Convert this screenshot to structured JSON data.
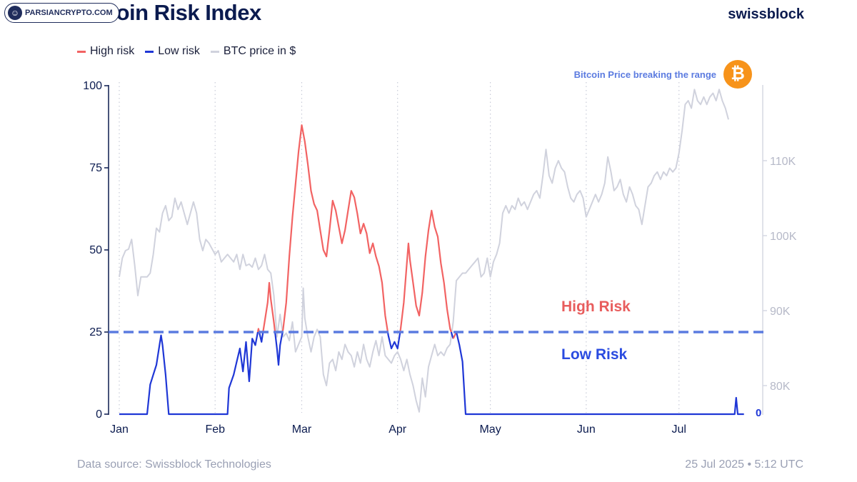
{
  "header": {
    "title": "Bitcoin Risk Index",
    "brand": "swissblock",
    "watermark": "PARSIANCRYPTO.COM"
  },
  "legend": [
    {
      "label": "High risk",
      "color": "#f26363"
    },
    {
      "label": "Low risk",
      "color": "#1f37d6"
    },
    {
      "label": "BTC price in $",
      "color": "#d0d2dd"
    }
  ],
  "annotations": {
    "range_note": "Bitcoin Price breaking the range",
    "btc_symbol": "₿",
    "high_zone": "High Risk",
    "low_zone": "Low Risk",
    "zero_right": "0"
  },
  "footer": {
    "source": "Data source: Swissblock Technologies",
    "timestamp": "25 Jul 2025 • 5:12 UTC"
  },
  "chart_data": {
    "type": "line",
    "threshold": 25,
    "left_axis": {
      "min": 0,
      "max": 100,
      "ticks": [
        0,
        25,
        50,
        75,
        100
      ]
    },
    "right_axis": {
      "ticks": [
        80000,
        90000,
        100000,
        110000
      ],
      "tick_labels": [
        "80K",
        "90K",
        "100K",
        "110K"
      ]
    },
    "x_ticks": [
      {
        "label": "Jan",
        "day": 0
      },
      {
        "label": "Feb",
        "day": 31
      },
      {
        "label": "Mar",
        "day": 59
      },
      {
        "label": "Apr",
        "day": 90
      },
      {
        "label": "May",
        "day": 120
      },
      {
        "label": "Jun",
        "day": 151
      },
      {
        "label": "Jul",
        "day": 181
      }
    ],
    "series": [
      {
        "name": "High risk / Low risk",
        "color_high": "#f26363",
        "color_low": "#1f37d6",
        "points": [
          [
            0,
            0
          ],
          [
            9,
            0
          ],
          [
            10,
            9
          ],
          [
            11,
            12
          ],
          [
            12,
            15
          ],
          [
            13,
            21
          ],
          [
            13.5,
            24
          ],
          [
            14,
            21
          ],
          [
            15,
            12
          ],
          [
            15.5,
            6
          ],
          [
            16,
            0
          ],
          [
            34,
            0
          ],
          [
            35,
            0
          ],
          [
            35.5,
            8
          ],
          [
            37,
            12
          ],
          [
            38,
            16
          ],
          [
            39,
            20
          ],
          [
            40,
            13
          ],
          [
            41,
            22
          ],
          [
            42,
            10
          ],
          [
            43,
            23
          ],
          [
            44,
            21
          ],
          [
            45,
            26
          ],
          [
            46,
            22
          ],
          [
            47,
            28
          ],
          [
            48,
            34
          ],
          [
            48.5,
            40
          ],
          [
            49,
            35
          ],
          [
            50,
            28
          ],
          [
            51,
            20
          ],
          [
            51.5,
            15
          ],
          [
            52,
            21
          ],
          [
            53,
            26
          ],
          [
            54,
            34
          ],
          [
            55,
            48
          ],
          [
            56,
            60
          ],
          [
            57,
            70
          ],
          [
            58,
            80
          ],
          [
            59,
            88
          ],
          [
            60,
            83
          ],
          [
            61,
            76
          ],
          [
            62,
            68
          ],
          [
            63,
            64
          ],
          [
            64,
            62
          ],
          [
            65,
            56
          ],
          [
            66,
            50
          ],
          [
            67,
            48
          ],
          [
            68,
            56
          ],
          [
            69,
            65
          ],
          [
            70,
            62
          ],
          [
            71,
            57
          ],
          [
            72,
            52
          ],
          [
            73,
            56
          ],
          [
            74,
            62
          ],
          [
            75,
            68
          ],
          [
            76,
            66
          ],
          [
            77,
            61
          ],
          [
            78,
            55
          ],
          [
            79,
            58
          ],
          [
            80,
            55
          ],
          [
            81,
            49
          ],
          [
            82,
            52
          ],
          [
            83,
            48
          ],
          [
            84,
            45
          ],
          [
            85,
            40
          ],
          [
            86,
            30
          ],
          [
            87,
            24
          ],
          [
            88,
            20
          ],
          [
            89,
            22
          ],
          [
            90,
            20
          ],
          [
            91,
            26
          ],
          [
            92,
            34
          ],
          [
            93,
            46
          ],
          [
            93.5,
            52
          ],
          [
            94,
            47
          ],
          [
            95,
            40
          ],
          [
            96,
            33
          ],
          [
            97,
            30
          ],
          [
            98,
            37
          ],
          [
            99,
            48
          ],
          [
            100,
            56
          ],
          [
            101,
            62
          ],
          [
            102,
            57
          ],
          [
            103,
            54
          ],
          [
            104,
            46
          ],
          [
            105,
            40
          ],
          [
            106,
            32
          ],
          [
            107,
            26
          ],
          [
            108,
            23
          ],
          [
            109,
            25
          ],
          [
            110,
            21
          ],
          [
            111,
            16
          ],
          [
            112,
            0
          ],
          [
            198,
            0
          ],
          [
            199,
            0
          ],
          [
            199.5,
            5
          ],
          [
            200,
            0
          ],
          [
            202,
            0
          ]
        ]
      },
      {
        "name": "BTC price in $",
        "color": "#d0d2dd",
        "points": [
          [
            0,
            94500
          ],
          [
            1,
            97000
          ],
          [
            2,
            98000
          ],
          [
            3,
            98200
          ],
          [
            4,
            99500
          ],
          [
            5,
            96000
          ],
          [
            6,
            92000
          ],
          [
            7,
            94500
          ],
          [
            9,
            94500
          ],
          [
            10,
            95000
          ],
          [
            11,
            97500
          ],
          [
            12,
            101000
          ],
          [
            13,
            100500
          ],
          [
            14,
            103000
          ],
          [
            15,
            104000
          ],
          [
            16,
            102000
          ],
          [
            17,
            102500
          ],
          [
            18,
            105000
          ],
          [
            19,
            103500
          ],
          [
            20,
            104500
          ],
          [
            21,
            103000
          ],
          [
            22,
            101500
          ],
          [
            24,
            104500
          ],
          [
            25,
            103000
          ],
          [
            26,
            99500
          ],
          [
            27,
            98000
          ],
          [
            28,
            99500
          ],
          [
            29,
            99000
          ],
          [
            31,
            97500
          ],
          [
            32,
            98000
          ],
          [
            33,
            96500
          ],
          [
            34,
            97000
          ],
          [
            35,
            97500
          ],
          [
            36,
            97000
          ],
          [
            37,
            96500
          ],
          [
            38,
            97500
          ],
          [
            39,
            95500
          ],
          [
            40,
            97500
          ],
          [
            41,
            96000
          ],
          [
            42,
            96200
          ],
          [
            43,
            95800
          ],
          [
            44,
            97000
          ],
          [
            45,
            95500
          ],
          [
            46,
            96000
          ],
          [
            47,
            97500
          ],
          [
            48,
            95500
          ],
          [
            49,
            95000
          ],
          [
            50,
            92000
          ],
          [
            51,
            86500
          ],
          [
            52,
            89500
          ],
          [
            53,
            86500
          ],
          [
            54,
            87000
          ],
          [
            55,
            86000
          ],
          [
            56,
            88500
          ],
          [
            57,
            84500
          ],
          [
            58,
            85500
          ],
          [
            59,
            86500
          ],
          [
            59.5,
            93000
          ],
          [
            60,
            89000
          ],
          [
            61,
            86500
          ],
          [
            62,
            84500
          ],
          [
            63,
            86500
          ],
          [
            64,
            87500
          ],
          [
            65,
            86500
          ],
          [
            66,
            81500
          ],
          [
            67,
            80000
          ],
          [
            68,
            83000
          ],
          [
            69,
            83500
          ],
          [
            70,
            82000
          ],
          [
            71,
            84500
          ],
          [
            72,
            83500
          ],
          [
            73,
            85500
          ],
          [
            74,
            84500
          ],
          [
            75,
            84000
          ],
          [
            76,
            82500
          ],
          [
            77,
            84500
          ],
          [
            78,
            83000
          ],
          [
            79,
            85500
          ],
          [
            80,
            83500
          ],
          [
            81,
            82500
          ],
          [
            82,
            84500
          ],
          [
            83,
            86000
          ],
          [
            84,
            84000
          ],
          [
            85,
            86500
          ],
          [
            86,
            84000
          ],
          [
            87,
            83500
          ],
          [
            88,
            83000
          ],
          [
            89,
            84000
          ],
          [
            90,
            84500
          ],
          [
            91,
            83500
          ],
          [
            92,
            82000
          ],
          [
            93,
            83500
          ],
          [
            94,
            81500
          ],
          [
            95,
            80000
          ],
          [
            96,
            78000
          ],
          [
            97,
            76500
          ],
          [
            98,
            81000
          ],
          [
            99,
            78500
          ],
          [
            100,
            82500
          ],
          [
            101,
            84000
          ],
          [
            102,
            85500
          ],
          [
            103,
            84000
          ],
          [
            104,
            84500
          ],
          [
            105,
            84000
          ],
          [
            106,
            85000
          ],
          [
            107,
            85500
          ],
          [
            108,
            88500
          ],
          [
            109,
            94000
          ],
          [
            110,
            94500
          ],
          [
            111,
            95000
          ],
          [
            112,
            95000
          ],
          [
            113,
            95500
          ],
          [
            114,
            96000
          ],
          [
            115,
            96500
          ],
          [
            116,
            97000
          ],
          [
            117,
            94500
          ],
          [
            118,
            95000
          ],
          [
            119,
            97000
          ],
          [
            120,
            94500
          ],
          [
            121,
            96500
          ],
          [
            122,
            97500
          ],
          [
            123,
            99000
          ],
          [
            124,
            103000
          ],
          [
            125,
            104000
          ],
          [
            126,
            103000
          ],
          [
            127,
            104000
          ],
          [
            128,
            103500
          ],
          [
            129,
            105000
          ],
          [
            130,
            104000
          ],
          [
            131,
            104500
          ],
          [
            132,
            103500
          ],
          [
            133,
            104500
          ],
          [
            134,
            105500
          ],
          [
            135,
            106000
          ],
          [
            136,
            105000
          ],
          [
            137,
            108000
          ],
          [
            138,
            111500
          ],
          [
            139,
            108000
          ],
          [
            140,
            107000
          ],
          [
            141,
            109000
          ],
          [
            142,
            110000
          ],
          [
            143,
            109000
          ],
          [
            144,
            108500
          ],
          [
            145,
            106500
          ],
          [
            146,
            105000
          ],
          [
            147,
            104500
          ],
          [
            148,
            105500
          ],
          [
            149,
            106000
          ],
          [
            150,
            105000
          ],
          [
            151,
            102500
          ],
          [
            152,
            103500
          ],
          [
            153,
            104500
          ],
          [
            154,
            105500
          ],
          [
            155,
            104500
          ],
          [
            156,
            105500
          ],
          [
            157,
            107000
          ],
          [
            158,
            110500
          ],
          [
            159,
            108500
          ],
          [
            160,
            106000
          ],
          [
            161,
            106500
          ],
          [
            162,
            107500
          ],
          [
            163,
            105500
          ],
          [
            164,
            104500
          ],
          [
            165,
            106500
          ],
          [
            166,
            105500
          ],
          [
            167,
            104000
          ],
          [
            168,
            103500
          ],
          [
            169,
            101500
          ],
          [
            170,
            104000
          ],
          [
            171,
            106500
          ],
          [
            172,
            107000
          ],
          [
            173,
            108000
          ],
          [
            174,
            108500
          ],
          [
            175,
            107500
          ],
          [
            176,
            108500
          ],
          [
            177,
            108000
          ],
          [
            178,
            109000
          ],
          [
            179,
            108500
          ],
          [
            180,
            109000
          ],
          [
            181,
            111000
          ],
          [
            182,
            114000
          ],
          [
            183,
            117500
          ],
          [
            184,
            118000
          ],
          [
            185,
            117000
          ],
          [
            186,
            119500
          ],
          [
            187,
            118000
          ],
          [
            188,
            117500
          ],
          [
            189,
            118500
          ],
          [
            190,
            117500
          ],
          [
            191,
            118500
          ],
          [
            192,
            119000
          ],
          [
            193,
            118000
          ],
          [
            194,
            119500
          ],
          [
            195,
            118000
          ],
          [
            196,
            117000
          ],
          [
            197,
            115500
          ]
        ]
      }
    ]
  }
}
